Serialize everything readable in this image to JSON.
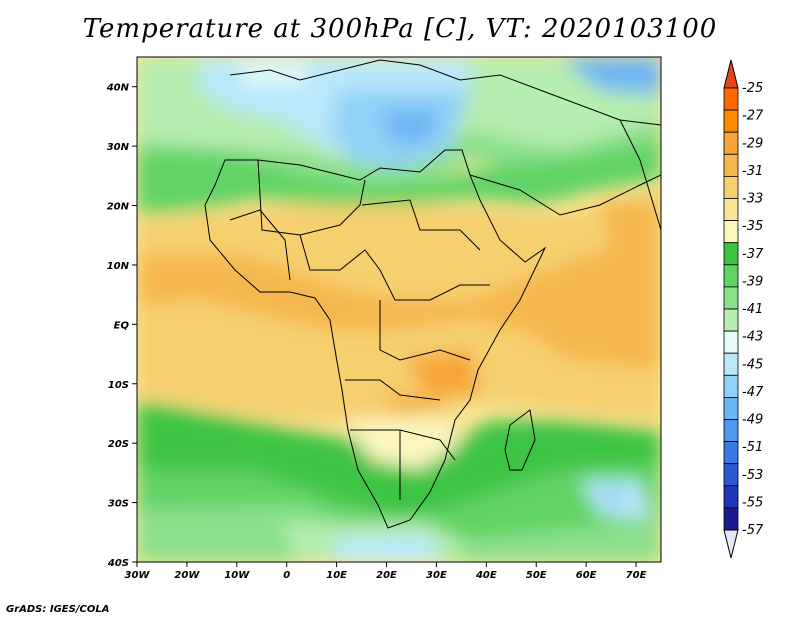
{
  "title": "Temperature at 300hPa [C], VT: 2020103100",
  "credit": "GrADS: IGES/COLA",
  "map": {
    "lon_labels": [
      "30W",
      "20W",
      "10W",
      "0",
      "10E",
      "20E",
      "30E",
      "40E",
      "50E",
      "60E",
      "70E"
    ],
    "lat_labels": [
      "40N",
      "30N",
      "20N",
      "10N",
      "EQ",
      "10S",
      "20S",
      "30S",
      "40S"
    ],
    "lon_range": [
      -30,
      75
    ],
    "lat_range": [
      -40,
      45
    ]
  },
  "colorbar": {
    "labels": [
      "-25",
      "-27",
      "-29",
      "-31",
      "-33",
      "-35",
      "-37",
      "-39",
      "-41",
      "-43",
      "-45",
      "-47",
      "-49",
      "-51",
      "-53",
      "-55",
      "-57"
    ],
    "colors": [
      "#ff6a00",
      "#ff8c00",
      "#f7a436",
      "#f5b84f",
      "#f6cf6e",
      "#f8e696",
      "#fbf6bd",
      "#3cc445",
      "#62d366",
      "#8be08b",
      "#b6edb0",
      "#e4fbf9",
      "#b9e8fb",
      "#91d1f7",
      "#6eb6f3",
      "#4f97ec",
      "#3a78e2",
      "#2b58d2",
      "#1e36b8",
      "#1a1a8a"
    ],
    "top_arrow_color": "#e8431a",
    "bottom_arrow_color": "#e6e6fb"
  }
}
